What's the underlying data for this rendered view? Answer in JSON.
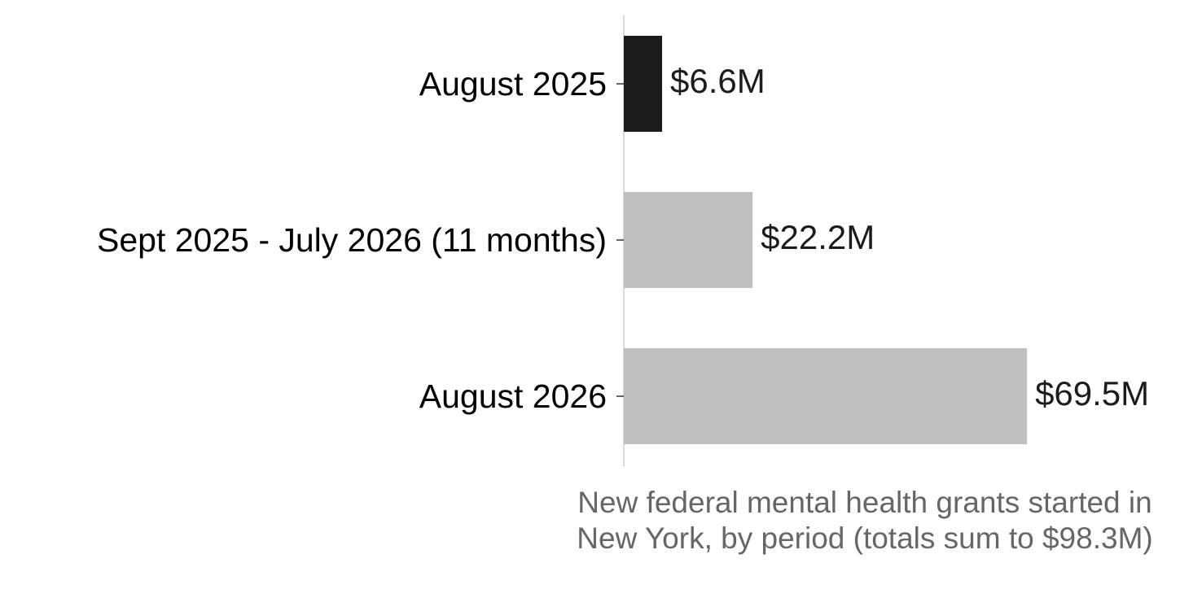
{
  "chart_data": {
    "type": "barh",
    "categories": [
      "August 2025",
      "Sept 2025 - July 2026 (11 months)",
      "August 2026"
    ],
    "values": [
      6.6,
      22.2,
      69.5
    ],
    "value_labels": [
      "$6.6M",
      "$22.2M",
      "$69.5M"
    ],
    "colors": [
      "#1c1c1c",
      "#c0c0c0",
      "#c0c0c0"
    ],
    "xlabel": "New federal mental health grants started in New York, by period (totals sum to $98.3M)",
    "xlim": [
      0,
      73
    ]
  }
}
